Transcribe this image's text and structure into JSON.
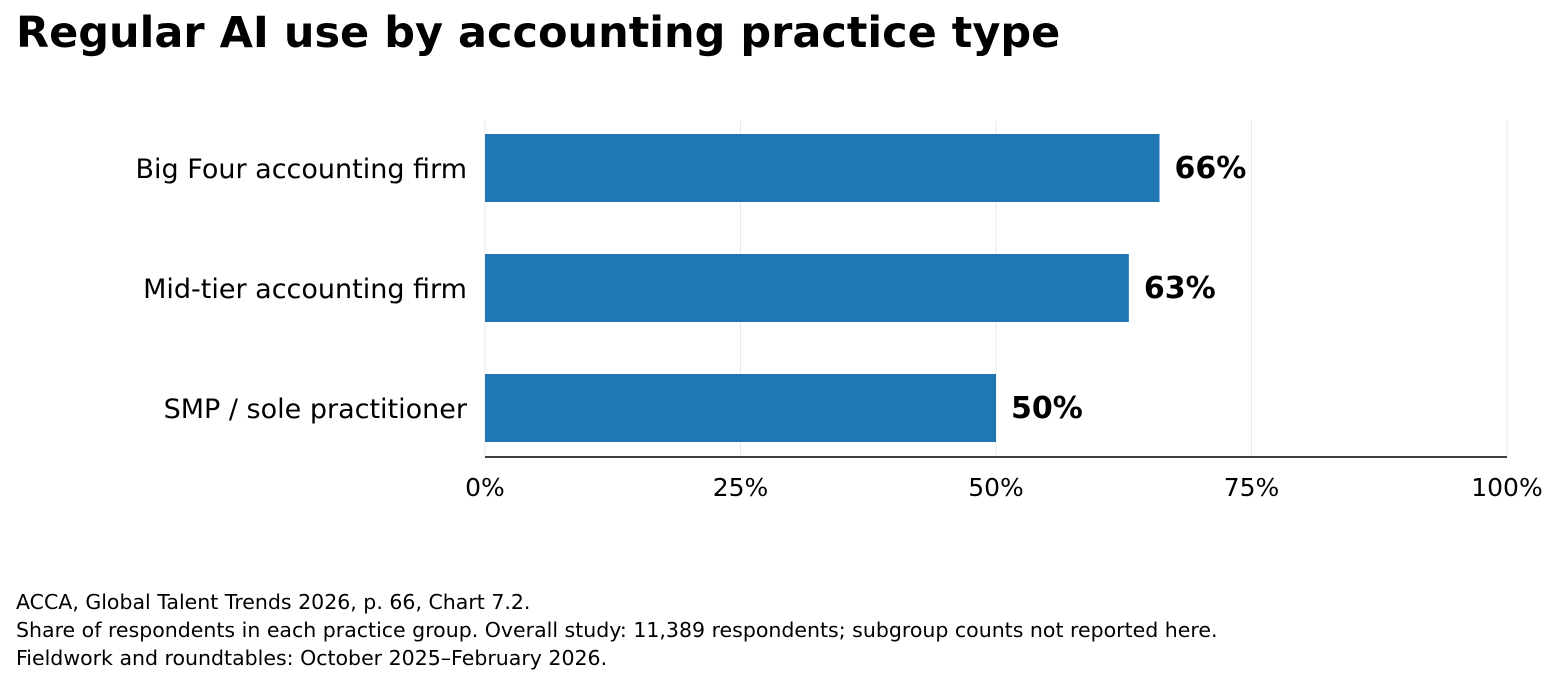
{
  "chart_data": {
    "type": "bar",
    "orientation": "horizontal",
    "title": "Regular AI use by accounting practice type",
    "categories": [
      "Big Four accounting firm",
      "Mid-tier accounting firm",
      "SMP / sole practitioner"
    ],
    "values": [
      66,
      63,
      50
    ],
    "value_labels": [
      "66%",
      "63%",
      "50%"
    ],
    "xlim": [
      0,
      100
    ],
    "xticks": [
      0,
      25,
      50,
      75,
      100
    ],
    "xtick_labels": [
      "0%",
      "25%",
      "50%",
      "75%",
      "100%"
    ],
    "xlabel": "",
    "ylabel": "",
    "grid": "vertical",
    "legend": "none",
    "bar_color": "#1f77b4"
  },
  "footer": {
    "line1": "ACCA, Global Talent Trends 2026, p. 66, Chart 7.2.",
    "line2": "Share of respondents in each practice group. Overall study: 11,389 respondents; subgroup counts not reported here.",
    "line3": "Fieldwork and roundtables: October 2025–February 2026."
  }
}
